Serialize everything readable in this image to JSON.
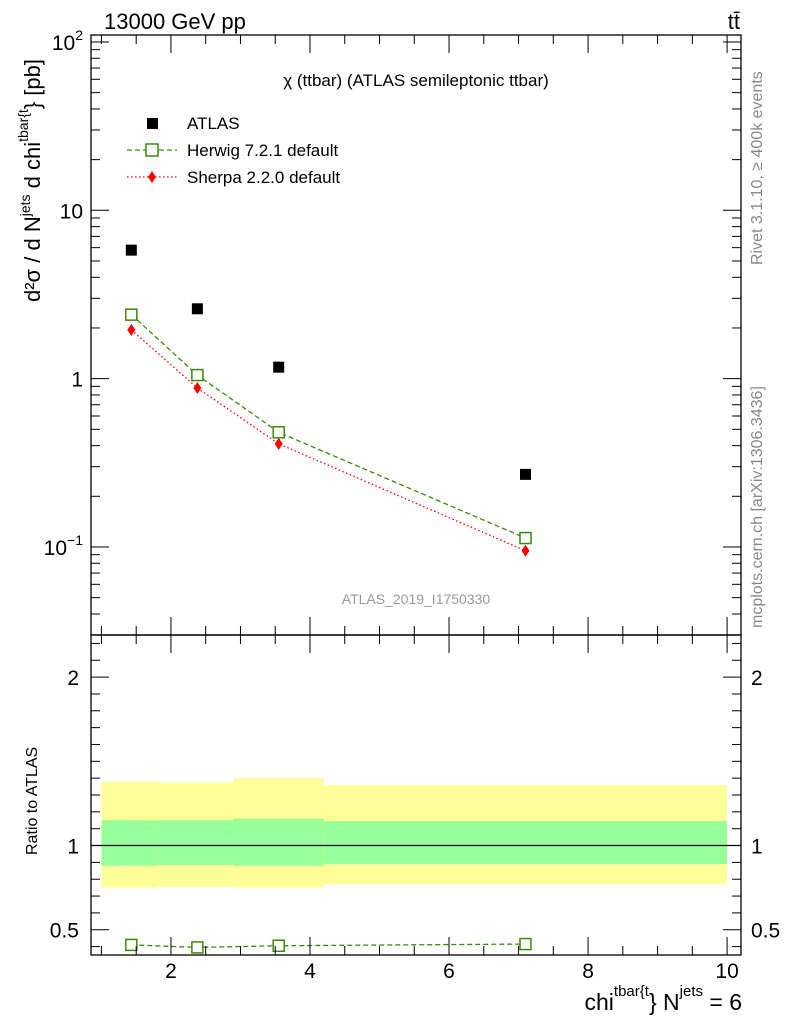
{
  "header": {
    "left": "13000 GeV pp",
    "right": "tt̄"
  },
  "side_labels": {
    "top": "Rivet 3.1.10, ≥ 400k events",
    "bottom": "mcplots.cern.ch [arXiv:1306.3436]"
  },
  "chart_data": [
    {
      "type": "scatter",
      "title": "χ (ttbar) (ATLAS semileptonic ttbar)",
      "watermark": "ATLAS_2019_I1750330",
      "ylabel_parts": {
        "d2sigma": "d²σ / d N",
        "jets": "jets",
        "dchi": " d chi",
        "tbar": "tbar{t",
        "close": "} [pb]"
      },
      "y_scale": "log",
      "ylim": [
        0.03,
        110
      ],
      "xlim": [
        0.85,
        10.2
      ],
      "y_ticks": [
        {
          "value": 100,
          "base": "10",
          "exp": "2"
        },
        {
          "value": 10,
          "base": "10",
          "exp": ""
        },
        {
          "value": 1,
          "base": "1",
          "exp": ""
        },
        {
          "value": 0.1,
          "base": "10",
          "exp": "−1"
        }
      ],
      "legend_position": "top-left",
      "series": [
        {
          "name": "ATLAS",
          "marker": "filled-square",
          "color": "#000000",
          "x": [
            1.43,
            2.38,
            3.55,
            7.1
          ],
          "y": [
            5.8,
            2.6,
            1.17,
            0.27
          ]
        },
        {
          "name": "Herwig 7.2.1 default",
          "marker": "open-square",
          "color": "#3a8a0a",
          "line": "dashed",
          "x": [
            1.43,
            2.38,
            3.55,
            7.1
          ],
          "y": [
            2.4,
            1.05,
            0.48,
            0.113
          ]
        },
        {
          "name": "Sherpa 2.2.0 default",
          "marker": "diamond",
          "color": "#ff0000",
          "line": "dotted",
          "x": [
            1.43,
            2.38,
            3.55,
            7.1
          ],
          "y": [
            1.95,
            0.88,
            0.41,
            0.095
          ]
        }
      ]
    },
    {
      "type": "line",
      "ylabel": "Ratio to ATLAS",
      "ylim": [
        0.35,
        2.25
      ],
      "xlim": [
        0.85,
        10.2
      ],
      "y_tick_labels": [
        "2",
        "1",
        "0.5"
      ],
      "y_ticks": [
        2,
        1,
        0.5
      ],
      "x_ticks": [
        2,
        4,
        6,
        8,
        10
      ],
      "x_tick_labels": [
        "2",
        "4",
        "6",
        "8",
        "10"
      ],
      "xlabel_parts": {
        "chi": "chi",
        "tbar": "tbar{t",
        "close": "} N",
        "jets": "jets",
        "eq": " = 6"
      },
      "bins": [
        {
          "x_low": 1.0,
          "x_high": 1.8,
          "inner": [
            0.88,
            1.15
          ],
          "outer": [
            0.75,
            1.38
          ]
        },
        {
          "x_low": 1.8,
          "x_high": 2.9,
          "inner": [
            0.885,
            1.15
          ],
          "outer": [
            0.755,
            1.375
          ]
        },
        {
          "x_low": 2.9,
          "x_high": 4.2,
          "inner": [
            0.88,
            1.16
          ],
          "outer": [
            0.75,
            1.4
          ]
        },
        {
          "x_low": 4.2,
          "x_high": 10.0,
          "inner": [
            0.89,
            1.145
          ],
          "outer": [
            0.77,
            1.36
          ]
        }
      ],
      "series": [
        {
          "name": "Herwig 7.2.1 default",
          "color": "#3a8a0a",
          "x": [
            1.43,
            2.38,
            3.55,
            7.1
          ],
          "y": [
            0.41,
            0.395,
            0.405,
            0.415
          ]
        }
      ]
    }
  ]
}
